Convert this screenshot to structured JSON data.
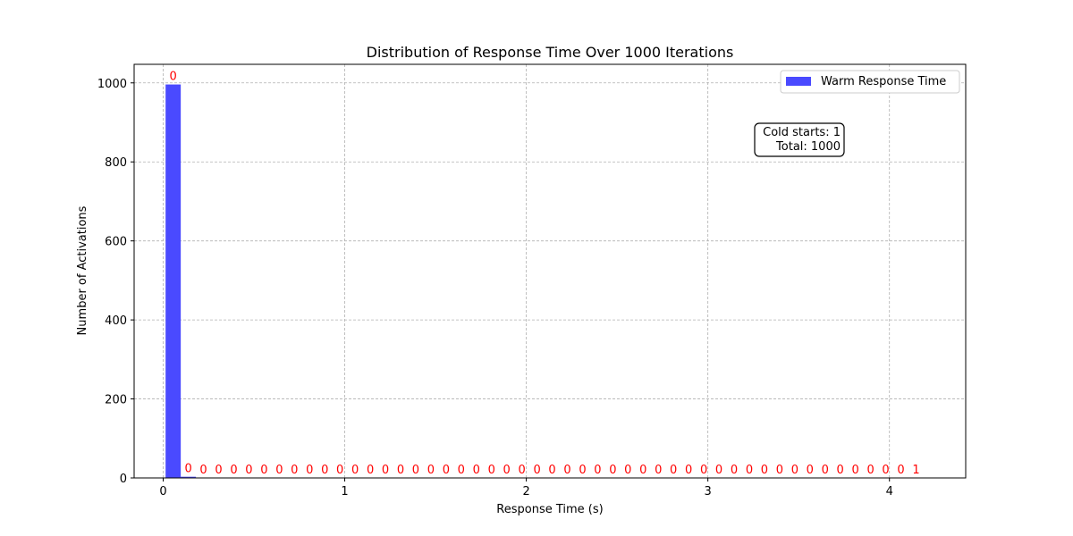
{
  "chart_data": {
    "type": "bar",
    "title": "Distribution of Response Time Over 1000 Iterations",
    "xlabel": "Response Time (s)",
    "ylabel": "Number of Activations",
    "xlim": [
      -0.16,
      4.42
    ],
    "ylim": [
      0,
      1047
    ],
    "xticks": [
      0,
      1,
      2,
      3,
      4
    ],
    "yticks": [
      0,
      200,
      400,
      600,
      800,
      1000
    ],
    "grid": true,
    "legend_position": "top-right",
    "bin_width": 0.0835,
    "bin_start": 0.0133,
    "series": [
      {
        "name": "Warm Response Time",
        "color": "#4a4aff",
        "values": [
          996,
          3,
          0,
          0,
          0,
          0,
          0,
          0,
          0,
          0,
          0,
          0,
          0,
          0,
          0,
          0,
          0,
          0,
          0,
          0,
          0,
          0,
          0,
          0,
          0,
          0,
          0,
          0,
          0,
          0,
          0,
          0,
          0,
          0,
          0,
          0,
          0,
          0,
          0,
          0,
          0,
          0,
          0,
          0,
          0,
          0,
          0,
          0,
          0,
          0
        ]
      }
    ],
    "bar_labels": [
      "0",
      "0",
      "0",
      "0",
      "0",
      "0",
      "0",
      "0",
      "0",
      "0",
      "0",
      "0",
      "0",
      "0",
      "0",
      "0",
      "0",
      "0",
      "0",
      "0",
      "0",
      "0",
      "0",
      "0",
      "0",
      "0",
      "0",
      "0",
      "0",
      "0",
      "0",
      "0",
      "0",
      "0",
      "0",
      "0",
      "0",
      "0",
      "0",
      "0",
      "0",
      "0",
      "0",
      "0",
      "0",
      "0",
      "0",
      "0",
      "0",
      "1"
    ],
    "annotation": {
      "line1": "Cold starts: 1",
      "line2": "Total: 1000"
    }
  }
}
